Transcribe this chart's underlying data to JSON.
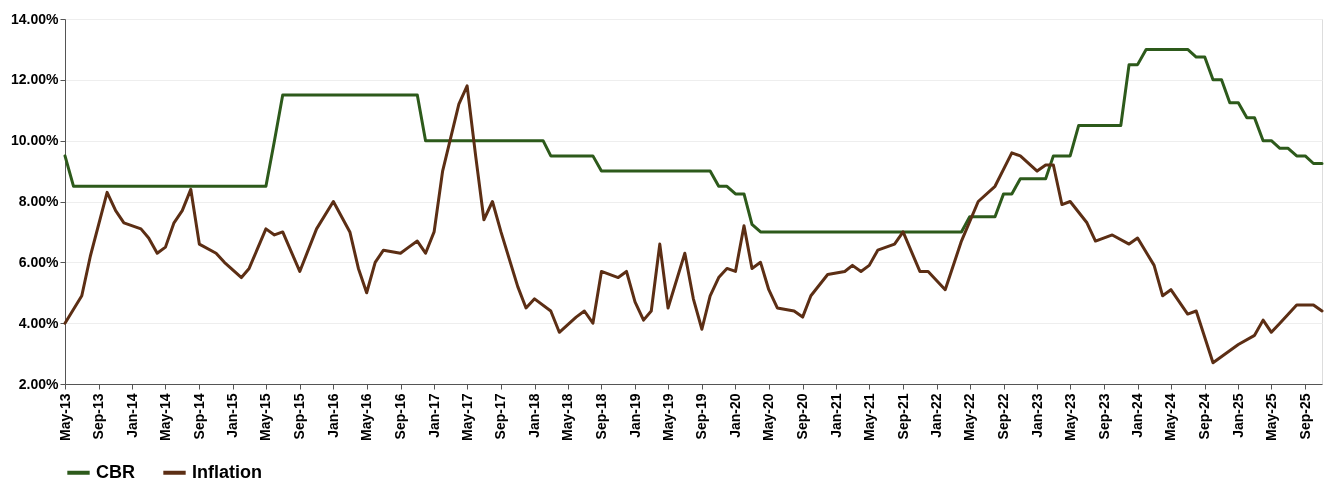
{
  "chart_data": {
    "type": "line",
    "xlim": [
      "2013-05",
      "2025-11"
    ],
    "xticks": [
      {
        "value": "2013-05",
        "label": "May-13"
      },
      {
        "value": "2013-09",
        "label": "Sep-13"
      },
      {
        "value": "2014-01",
        "label": "Jan-14"
      },
      {
        "value": "2014-05",
        "label": "May-14"
      },
      {
        "value": "2014-09",
        "label": "Sep-14"
      },
      {
        "value": "2015-01",
        "label": "Jan-15"
      },
      {
        "value": "2015-05",
        "label": "May-15"
      },
      {
        "value": "2015-09",
        "label": "Sep-15"
      },
      {
        "value": "2016-01",
        "label": "Jan-16"
      },
      {
        "value": "2016-05",
        "label": "May-16"
      },
      {
        "value": "2016-09",
        "label": "Sep-16"
      },
      {
        "value": "2017-01",
        "label": "Jan-17"
      },
      {
        "value": "2017-05",
        "label": "May-17"
      },
      {
        "value": "2017-09",
        "label": "Sep-17"
      },
      {
        "value": "2018-01",
        "label": "Jan-18"
      },
      {
        "value": "2018-05",
        "label": "May-18"
      },
      {
        "value": "2018-09",
        "label": "Sep-18"
      },
      {
        "value": "2019-01",
        "label": "Jan-19"
      },
      {
        "value": "2019-05",
        "label": "May-19"
      },
      {
        "value": "2019-09",
        "label": "Sep-19"
      },
      {
        "value": "2020-01",
        "label": "Jan-20"
      },
      {
        "value": "2020-05",
        "label": "May-20"
      },
      {
        "value": "2020-09",
        "label": "Sep-20"
      },
      {
        "value": "2021-01",
        "label": "Jan-21"
      },
      {
        "value": "2021-05",
        "label": "May-21"
      },
      {
        "value": "2021-09",
        "label": "Sep-21"
      },
      {
        "value": "2022-01",
        "label": "Jan-22"
      },
      {
        "value": "2022-05",
        "label": "May-22"
      },
      {
        "value": "2022-09",
        "label": "Sep-22"
      },
      {
        "value": "2023-01",
        "label": "Jan-23"
      },
      {
        "value": "2023-05",
        "label": "May-23"
      },
      {
        "value": "2023-09",
        "label": "Sep-23"
      },
      {
        "value": "2024-01",
        "label": "Jan-24"
      },
      {
        "value": "2024-05",
        "label": "May-24"
      },
      {
        "value": "2024-09",
        "label": "Sep-24"
      },
      {
        "value": "2025-01",
        "label": "Jan-25"
      },
      {
        "value": "2025-05",
        "label": "May-25"
      },
      {
        "value": "2025-09",
        "label": "Sep-25"
      }
    ],
    "ylim": [
      2,
      14
    ],
    "yticks": [
      {
        "value": 2,
        "label": "2.00%"
      },
      {
        "value": 4,
        "label": "4.00%"
      },
      {
        "value": 6,
        "label": "6.00%"
      },
      {
        "value": 8,
        "label": "8.00%"
      },
      {
        "value": 10,
        "label": "10.00%"
      },
      {
        "value": 12,
        "label": "12.00%"
      },
      {
        "value": 14,
        "label": "14.00%"
      }
    ],
    "grid": "y",
    "legend": "bottom",
    "series": [
      {
        "name": "CBR",
        "color": "#2d5a1b",
        "x": [
          "2013-05",
          "2013-06",
          "2015-05",
          "2015-06",
          "2015-07",
          "2016-11",
          "2016-12",
          "2018-02",
          "2018-03",
          "2018-08",
          "2018-09",
          "2019-10",
          "2019-11",
          "2019-12",
          "2020-01",
          "2020-02",
          "2020-03",
          "2020-04",
          "2022-04",
          "2022-05",
          "2022-08",
          "2022-09",
          "2022-10",
          "2022-11",
          "2023-02",
          "2023-03",
          "2023-05",
          "2023-06",
          "2023-11",
          "2023-12",
          "2024-01",
          "2024-02",
          "2024-07",
          "2024-08",
          "2024-09",
          "2024-10",
          "2024-11",
          "2024-12",
          "2025-01",
          "2025-02",
          "2025-03",
          "2025-04",
          "2025-05",
          "2025-06",
          "2025-07",
          "2025-08",
          "2025-09",
          "2025-10",
          "2025-11"
        ],
        "values": [
          9.5,
          8.5,
          8.5,
          10,
          11.5,
          11.5,
          10,
          10,
          9.5,
          9.5,
          9,
          9,
          8.5,
          8.5,
          8.25,
          8.25,
          7.25,
          7,
          7,
          7.5,
          7.5,
          8.25,
          8.25,
          8.75,
          8.75,
          9.5,
          9.5,
          10.5,
          10.5,
          12.5,
          12.5,
          13,
          13,
          12.75,
          12.75,
          12,
          12,
          11.25,
          11.25,
          10.75,
          10.75,
          10,
          10,
          9.75,
          9.75,
          9.5,
          9.5,
          9.25,
          9.25
        ]
      },
      {
        "name": "Inflation",
        "color": "#5c2e14",
        "x": [
          "2013-05",
          "2013-07",
          "2013-08",
          "2013-10",
          "2013-11",
          "2013-12",
          "2014-01",
          "2014-02",
          "2014-03",
          "2014-04",
          "2014-05",
          "2014-06",
          "2014-07",
          "2014-08",
          "2014-09",
          "2014-11",
          "2014-12",
          "2015-02",
          "2015-03",
          "2015-05",
          "2015-06",
          "2015-07",
          "2015-09",
          "2015-11",
          "2016-01",
          "2016-03",
          "2016-04",
          "2016-05",
          "2016-06",
          "2016-07",
          "2016-09",
          "2016-10",
          "2016-11",
          "2016-12",
          "2017-01",
          "2017-02",
          "2017-04",
          "2017-05",
          "2017-06",
          "2017-07",
          "2017-08",
          "2017-09",
          "2017-11",
          "2017-12",
          "2018-01",
          "2018-03",
          "2018-04",
          "2018-06",
          "2018-07",
          "2018-08",
          "2018-09",
          "2018-11",
          "2018-12",
          "2019-01",
          "2019-02",
          "2019-03",
          "2019-04",
          "2019-05",
          "2019-07",
          "2019-08",
          "2019-09",
          "2019-10",
          "2019-11",
          "2019-12",
          "2020-01",
          "2020-02",
          "2020-03",
          "2020-04",
          "2020-05",
          "2020-06",
          "2020-08",
          "2020-09",
          "2020-10",
          "2020-12",
          "2021-02",
          "2021-03",
          "2021-04",
          "2021-05",
          "2021-06",
          "2021-08",
          "2021-09",
          "2021-11",
          "2021-12",
          "2022-02",
          "2022-04",
          "2022-06",
          "2022-08",
          "2022-10",
          "2022-11",
          "2023-01",
          "2023-02",
          "2023-03",
          "2023-04",
          "2023-05",
          "2023-07",
          "2023-08",
          "2023-10",
          "2023-12",
          "2024-01",
          "2024-03",
          "2024-04",
          "2024-05",
          "2024-07",
          "2024-08",
          "2024-10",
          "2025-01",
          "2025-03",
          "2025-04",
          "2025-05",
          "2025-06",
          "2025-08",
          "2025-10",
          "2025-11"
        ],
        "values": [
          4.0,
          4.9,
          6.2,
          8.3,
          7.7,
          7.3,
          7.2,
          7.1,
          6.8,
          6.3,
          6.5,
          7.3,
          7.7,
          8.4,
          6.6,
          6.3,
          6.0,
          5.5,
          5.8,
          7.1,
          6.9,
          7.0,
          5.7,
          7.1,
          8.0,
          7.0,
          5.8,
          5.0,
          6.0,
          6.4,
          6.3,
          6.5,
          6.7,
          6.3,
          7.0,
          9.0,
          11.2,
          11.8,
          9.5,
          7.4,
          8.0,
          7.0,
          5.2,
          4.5,
          4.8,
          4.4,
          3.7,
          4.2,
          4.4,
          4.0,
          5.7,
          5.5,
          5.7,
          4.7,
          4.1,
          4.4,
          6.6,
          4.5,
          6.3,
          4.8,
          3.8,
          4.9,
          5.5,
          5.8,
          5.7,
          7.2,
          5.8,
          6.0,
          5.1,
          4.5,
          4.4,
          4.2,
          4.9,
          5.6,
          5.7,
          5.9,
          5.7,
          5.9,
          6.4,
          6.6,
          7.0,
          5.7,
          5.7,
          5.1,
          6.7,
          8.0,
          8.5,
          9.6,
          9.5,
          9.0,
          9.2,
          9.2,
          7.9,
          8.0,
          7.3,
          6.7,
          6.9,
          6.6,
          6.8,
          5.9,
          4.9,
          5.1,
          4.3,
          4.4,
          2.7,
          3.3,
          3.6,
          4.1,
          3.7,
          4.0,
          4.6,
          4.6,
          4.4
        ]
      }
    ]
  }
}
